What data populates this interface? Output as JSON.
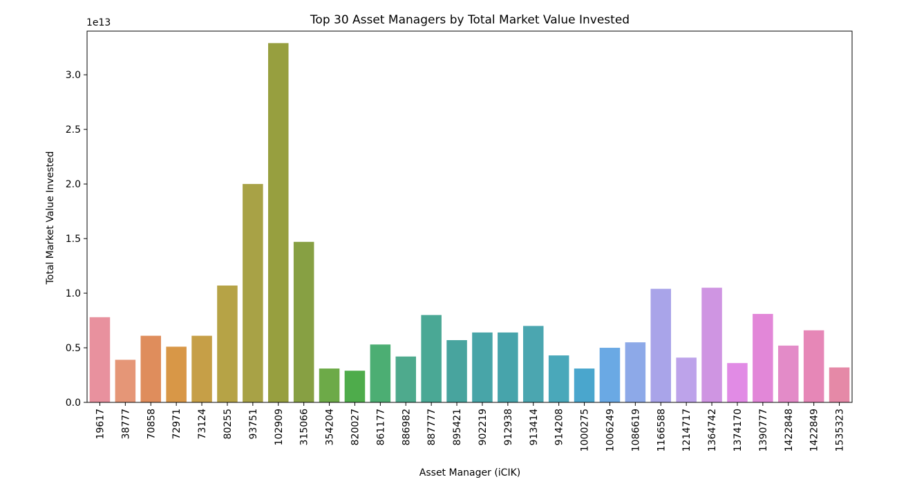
{
  "chart_data": {
    "type": "bar",
    "title": "Top 30 Asset Managers by Total Market Value Invested",
    "xlabel": "Asset Manager (iCIK)",
    "ylabel": "Total Market Value Invested",
    "offset_text": "1e13",
    "ylim": [
      0,
      3.4
    ],
    "yticks": [
      0.0,
      0.5,
      1.0,
      1.5,
      2.0,
      2.5,
      3.0
    ],
    "ytick_labels": [
      "0.0",
      "0.5",
      "1.0",
      "1.5",
      "2.0",
      "2.5",
      "3.0"
    ],
    "grid": false,
    "legend": "none",
    "categories": [
      "19617",
      "38777",
      "70858",
      "72971",
      "73124",
      "80255",
      "93751",
      "102909",
      "315066",
      "354204",
      "820027",
      "861177",
      "886982",
      "887777",
      "895421",
      "902219",
      "912938",
      "913414",
      "914208",
      "1000275",
      "1006249",
      "1086619",
      "1166588",
      "1214717",
      "1364742",
      "1374170",
      "1390777",
      "1422848",
      "1422849",
      "1535323"
    ],
    "values": [
      0.78,
      0.39,
      0.61,
      0.51,
      0.61,
      1.07,
      2.0,
      3.29,
      1.47,
      0.31,
      0.29,
      0.53,
      0.42,
      0.8,
      0.57,
      0.64,
      0.64,
      0.7,
      0.43,
      0.31,
      0.5,
      0.55,
      1.04,
      0.41,
      1.05,
      0.36,
      0.81,
      0.52,
      0.66,
      0.32
    ],
    "colors": [
      "#e8919e",
      "#e59677",
      "#df8d5c",
      "#d89747",
      "#c69f47",
      "#b6a346",
      "#a8a246",
      "#979f3f",
      "#87a043",
      "#6daa48",
      "#4eac4b",
      "#4cae73",
      "#4eaa8d",
      "#4aa895",
      "#48a49e",
      "#48a5a8",
      "#47a4ab",
      "#4ba6b0",
      "#4aa8ba",
      "#4aa6cd",
      "#6aa9e4",
      "#8da9e8",
      "#a9a4e9",
      "#bda3ea",
      "#cf95e2",
      "#e18be5",
      "#e287d8",
      "#e38bc8",
      "#e687b7",
      "#e589a7"
    ]
  }
}
